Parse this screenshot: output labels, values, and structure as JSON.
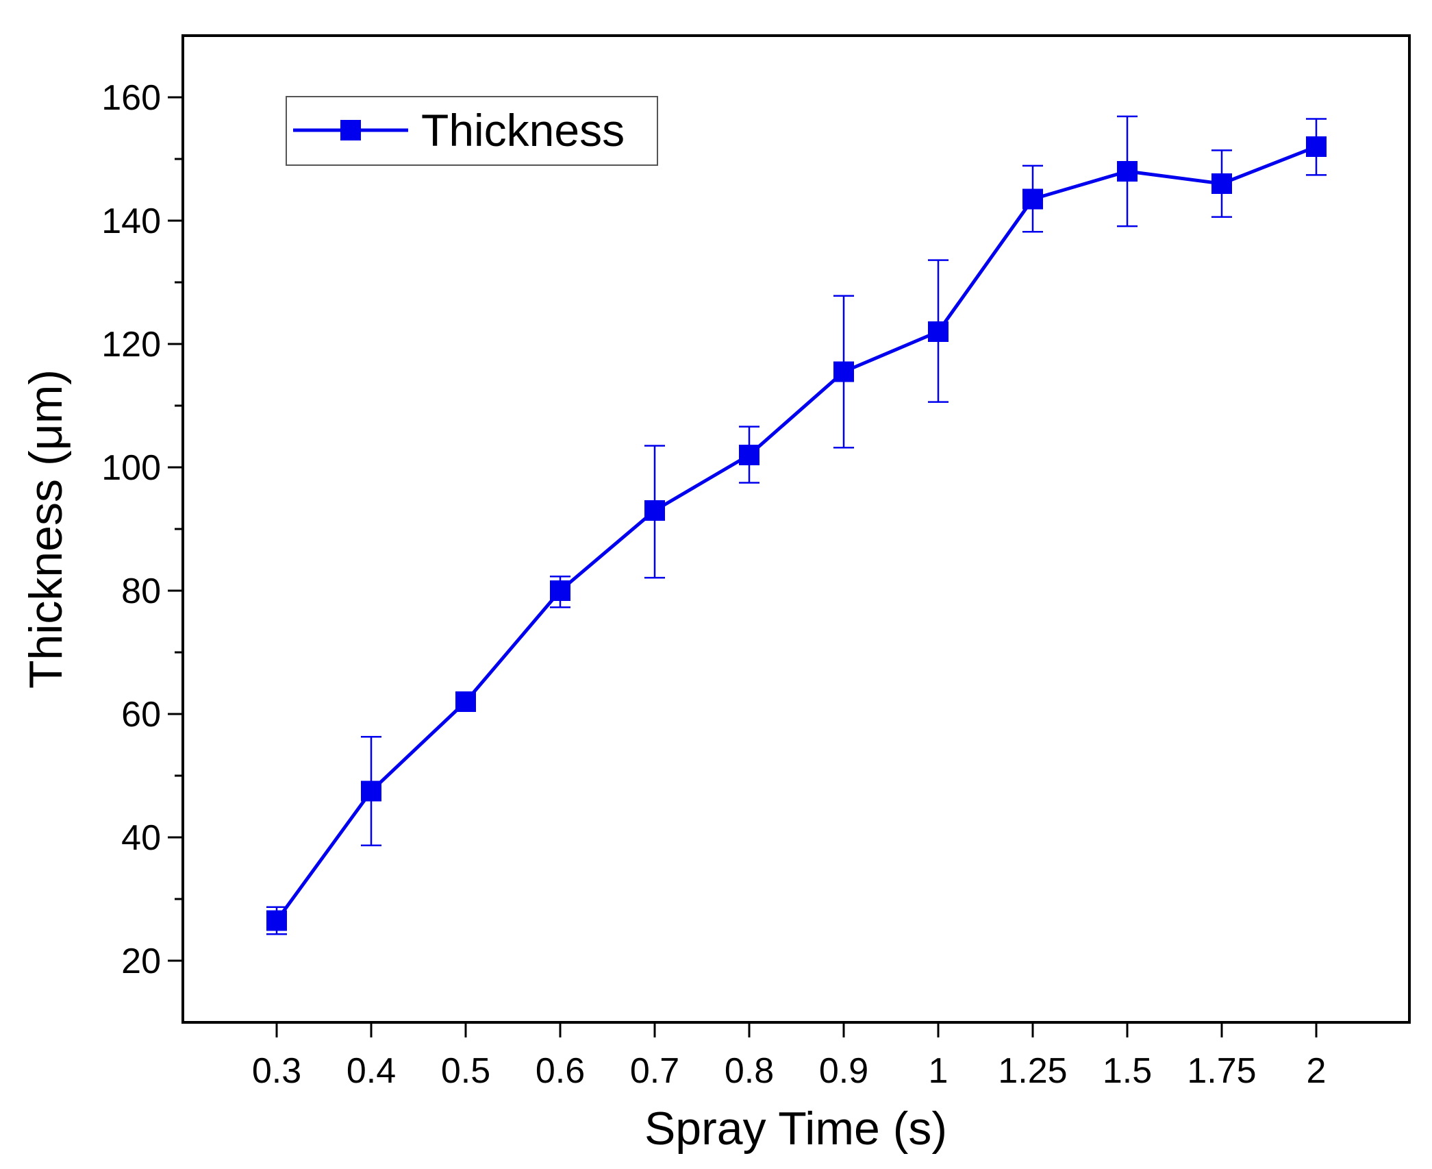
{
  "chart_data": {
    "type": "line",
    "xlabel": "Spray Time (s)",
    "ylabel": "Thickness (μm)",
    "categories": [
      "0.3",
      "0.4",
      "0.5",
      "0.6",
      "0.7",
      "0.8",
      "0.9",
      "1",
      "1.25",
      "1.5",
      "1.75",
      "2"
    ],
    "ylim": [
      10,
      170
    ],
    "yticks": [
      20,
      40,
      60,
      80,
      100,
      120,
      140,
      160
    ],
    "yminor_step": 10,
    "legend_position": "top-left",
    "grid": false,
    "series": [
      {
        "name": "Thickness",
        "color": "#0000ee",
        "marker": "square",
        "values": [
          26.5,
          47.5,
          62,
          80,
          93,
          102,
          115.5,
          122,
          143.5,
          148,
          146,
          152
        ],
        "error_low": [
          24.3,
          38.7,
          61.5,
          77.3,
          82.1,
          97.5,
          103.2,
          110.6,
          138.2,
          139.1,
          140.6,
          147.4
        ],
        "error_high": [
          28.7,
          56.3,
          62.5,
          82.3,
          103.5,
          106.6,
          127.8,
          133.6,
          148.9,
          156.9,
          151.4,
          156.5
        ]
      }
    ]
  }
}
